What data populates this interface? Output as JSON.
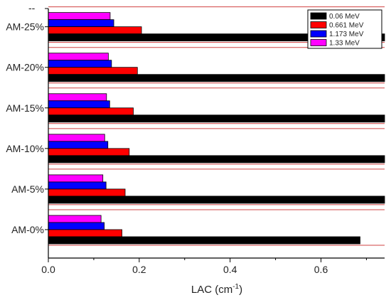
{
  "chart_data": {
    "type": "bar",
    "orientation": "horizontal",
    "categories": [
      "AM-0%",
      "AM-5%",
      "AM-10%",
      "AM-15%",
      "AM-20%",
      "AM-25%"
    ],
    "series": [
      {
        "name": "0.06 MeV",
        "color": "#000000",
        "values": [
          0.686,
          0.74,
          0.74,
          0.74,
          0.74,
          0.74
        ]
      },
      {
        "name": "0.661 MeV",
        "color": "#ff0000",
        "values": [
          0.162,
          0.169,
          0.178,
          0.187,
          0.196,
          0.205
        ]
      },
      {
        "name": "1.173 MeV",
        "color": "#0000ff",
        "values": [
          0.123,
          0.127,
          0.131,
          0.135,
          0.139,
          0.144
        ]
      },
      {
        "name": "1.33 MeV",
        "color": "#ff00ff",
        "values": [
          0.116,
          0.12,
          0.124,
          0.128,
          0.132,
          0.136
        ]
      }
    ],
    "xlabel": "LAC (cm",
    "xlabel_superscript": "-1",
    "xlabel_suffix": ")",
    "ylabel": "",
    "xlim": [
      0,
      0.74
    ],
    "xticks": [
      "0.0",
      "0.2",
      "0.4",
      "0.6"
    ],
    "xtick_values": [
      0,
      0.2,
      0.4,
      0.6
    ],
    "top_tick_label": "--",
    "legend_position": "top-right",
    "separator_color": "#d04040",
    "grid": false
  }
}
